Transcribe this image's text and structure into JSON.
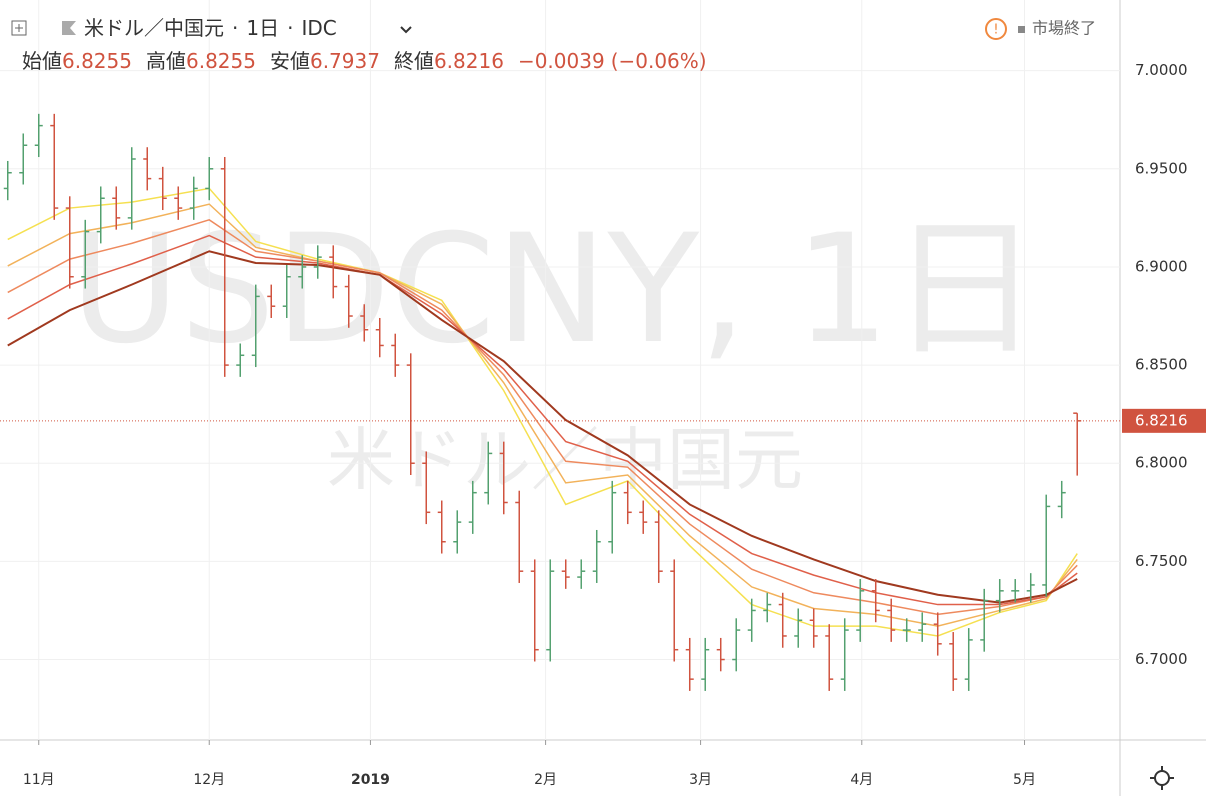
{
  "header": {
    "symbol": "米ドル／中国元",
    "interval": "1日",
    "source": "IDC",
    "open_label": "始値",
    "high_label": "高値",
    "low_label": "安値",
    "close_label": "終値",
    "change": "−0.0039",
    "change_pct": "(−0.06%)",
    "status": "市場終了"
  },
  "chart_data": {
    "type": "ohlc",
    "watermark": "USDCNY, 1日",
    "watermark_sub": "米ドル／中国元",
    "up_color": "#53a06f",
    "down_color": "#d0533f",
    "grid": true,
    "xlim": [
      -0.5,
      71.76
    ],
    "ylim": [
      6.659,
      7.036
    ],
    "xticks": [
      {
        "value": 2,
        "label": "11月"
      },
      {
        "value": 13,
        "label": "12月"
      },
      {
        "value": 23.4,
        "label": "2019"
      },
      {
        "value": 34.7,
        "label": "2月"
      },
      {
        "value": 44.7,
        "label": "3月"
      },
      {
        "value": 55.1,
        "label": "4月"
      },
      {
        "value": 65.6,
        "label": "5月"
      }
    ],
    "yticks": [
      {
        "value": 7.0,
        "label": "7.0000"
      },
      {
        "value": 6.95,
        "label": "6.9500"
      },
      {
        "value": 6.9,
        "label": "6.9000"
      },
      {
        "value": 6.85,
        "label": "6.8500"
      },
      {
        "value": 6.8,
        "label": "6.8000"
      },
      {
        "value": 6.75,
        "label": "6.7500"
      },
      {
        "value": 6.7,
        "label": "6.7000"
      }
    ],
    "x": [
      0,
      1,
      2,
      3,
      4,
      5,
      6,
      7,
      8,
      9,
      10,
      11,
      12,
      13,
      14,
      15,
      16,
      17,
      18,
      19,
      20,
      21,
      22,
      23,
      24,
      25,
      26,
      27,
      28,
      29,
      30,
      31,
      32,
      33,
      34,
      35,
      36,
      37,
      38,
      39,
      40,
      41,
      42,
      43,
      44,
      45,
      46,
      47,
      48,
      49,
      50,
      51,
      52,
      53,
      54,
      55,
      56,
      57,
      58,
      59,
      60,
      61,
      62,
      63,
      64,
      65,
      66,
      67,
      68,
      69
    ],
    "open": [
      6.94,
      6.948,
      6.962,
      6.972,
      6.93,
      6.895,
      6.918,
      6.935,
      6.925,
      6.955,
      6.945,
      6.935,
      6.93,
      6.94,
      6.95,
      6.85,
      6.855,
      6.885,
      6.88,
      6.895,
      6.9,
      6.905,
      6.89,
      6.875,
      6.868,
      6.86,
      6.85,
      6.8,
      6.775,
      6.76,
      6.77,
      6.785,
      6.805,
      6.78,
      6.745,
      6.705,
      6.745,
      6.742,
      6.745,
      6.76,
      6.785,
      6.775,
      6.77,
      6.745,
      6.705,
      6.69,
      6.705,
      6.7,
      6.715,
      6.725,
      6.728,
      6.712,
      6.72,
      6.712,
      6.69,
      6.715,
      6.735,
      6.725,
      6.715,
      6.715,
      6.718,
      6.708,
      6.69,
      6.71,
      6.73,
      6.735,
      6.735,
      6.738,
      6.778,
      6.8255
    ],
    "high": [
      6.954,
      6.968,
      6.978,
      6.978,
      6.936,
      6.924,
      6.941,
      6.941,
      6.961,
      6.961,
      6.951,
      6.941,
      6.946,
      6.956,
      6.956,
      6.861,
      6.891,
      6.891,
      6.901,
      6.906,
      6.911,
      6.911,
      6.896,
      6.881,
      6.874,
      6.866,
      6.856,
      6.806,
      6.781,
      6.776,
      6.791,
      6.811,
      6.811,
      6.786,
      6.751,
      6.751,
      6.751,
      6.751,
      6.766,
      6.791,
      6.791,
      6.781,
      6.776,
      6.751,
      6.711,
      6.711,
      6.711,
      6.721,
      6.731,
      6.734,
      6.734,
      6.726,
      6.726,
      6.718,
      6.721,
      6.741,
      6.741,
      6.731,
      6.721,
      6.724,
      6.724,
      6.714,
      6.716,
      6.736,
      6.741,
      6.741,
      6.744,
      6.784,
      6.791,
      6.8255
    ],
    "low": [
      6.934,
      6.942,
      6.956,
      6.924,
      6.889,
      6.889,
      6.912,
      6.919,
      6.919,
      6.939,
      6.929,
      6.924,
      6.924,
      6.934,
      6.844,
      6.844,
      6.849,
      6.874,
      6.874,
      6.889,
      6.894,
      6.884,
      6.869,
      6.862,
      6.854,
      6.844,
      6.794,
      6.769,
      6.754,
      6.754,
      6.764,
      6.779,
      6.774,
      6.739,
      6.699,
      6.699,
      6.736,
      6.736,
      6.739,
      6.754,
      6.769,
      6.764,
      6.739,
      6.699,
      6.684,
      6.684,
      6.694,
      6.694,
      6.709,
      6.719,
      6.706,
      6.706,
      6.706,
      6.684,
      6.684,
      6.709,
      6.719,
      6.709,
      6.709,
      6.709,
      6.702,
      6.684,
      6.684,
      6.704,
      6.724,
      6.729,
      6.729,
      6.732,
      6.772,
      6.7937
    ],
    "close": [
      6.948,
      6.962,
      6.972,
      6.93,
      6.895,
      6.918,
      6.935,
      6.925,
      6.955,
      6.945,
      6.935,
      6.93,
      6.94,
      6.95,
      6.85,
      6.855,
      6.885,
      6.88,
      6.895,
      6.9,
      6.905,
      6.89,
      6.875,
      6.868,
      6.86,
      6.85,
      6.8,
      6.775,
      6.76,
      6.77,
      6.785,
      6.805,
      6.78,
      6.745,
      6.705,
      6.745,
      6.742,
      6.745,
      6.76,
      6.785,
      6.775,
      6.77,
      6.745,
      6.705,
      6.69,
      6.705,
      6.7,
      6.715,
      6.725,
      6.728,
      6.712,
      6.72,
      6.712,
      6.69,
      6.715,
      6.735,
      6.725,
      6.715,
      6.715,
      6.718,
      6.708,
      6.69,
      6.71,
      6.73,
      6.735,
      6.735,
      6.738,
      6.778,
      6.785,
      6.8216
    ],
    "last_line_color": "#d0533f",
    "moving_averages": {
      "x": [
        0,
        4,
        8,
        13,
        16,
        20,
        24,
        28,
        32,
        36,
        40,
        44,
        48,
        52,
        56,
        60,
        64,
        67,
        69
      ],
      "series": [
        {
          "color": "#f5e050",
          "values": [
            6.914,
            6.93,
            6.933,
            6.94,
            6.913,
            6.904,
            6.897,
            6.883,
            6.837,
            6.779,
            6.791,
            6.758,
            6.728,
            6.717,
            6.717,
            6.712,
            6.724,
            6.73,
            6.754
          ]
        },
        {
          "color": "#f2b25a",
          "values": [
            6.9005,
            6.917,
            6.9225,
            6.932,
            6.91,
            6.903,
            6.897,
            6.881,
            6.841,
            6.79,
            6.794,
            6.763,
            6.737,
            6.726,
            6.723,
            6.717,
            6.725,
            6.731,
            6.751
          ]
        },
        {
          "color": "#ee8a5e",
          "values": [
            6.887,
            6.904,
            6.912,
            6.924,
            6.908,
            6.903,
            6.897,
            6.878,
            6.845,
            6.801,
            6.798,
            6.769,
            6.746,
            6.734,
            6.729,
            6.723,
            6.727,
            6.732,
            6.748
          ]
        },
        {
          "color": "#e0604a",
          "values": [
            6.8735,
            6.891,
            6.9015,
            6.916,
            6.905,
            6.902,
            6.896,
            6.876,
            6.848,
            6.811,
            6.801,
            6.774,
            6.754,
            6.743,
            6.734,
            6.728,
            6.728,
            6.732,
            6.744
          ]
        },
        {
          "color": "#a0391f",
          "values": [
            6.86,
            6.878,
            6.891,
            6.908,
            6.902,
            6.901,
            6.896,
            6.873,
            6.852,
            6.822,
            6.804,
            6.779,
            6.763,
            6.751,
            6.74,
            6.733,
            6.729,
            6.733,
            6.741
          ]
        }
      ]
    }
  }
}
